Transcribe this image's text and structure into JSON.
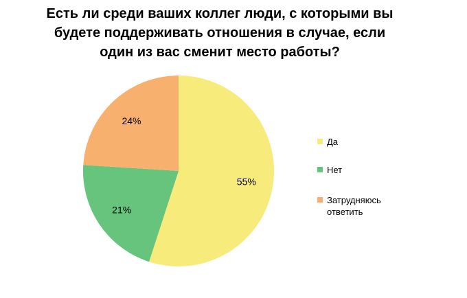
{
  "chart_data": {
    "type": "pie",
    "title_lines": [
      "Есть ли среди ваших коллег люди, с которыми вы",
      "будете поддерживать отношения в случае, если",
      "один из вас сменит место работы?"
    ],
    "slices": [
      {
        "name": "Да",
        "value": 55,
        "label": "55%",
        "color": "#F7EB7B"
      },
      {
        "name": "Нет",
        "value": 21,
        "label": "21%",
        "color": "#66C47D"
      },
      {
        "name": "Затрудняюсь ответить",
        "value": 24,
        "label": "24%",
        "color": "#F7B06D"
      }
    ],
    "legend_position": "right",
    "start_angle": "12 o'clock",
    "direction": "clockwise"
  }
}
